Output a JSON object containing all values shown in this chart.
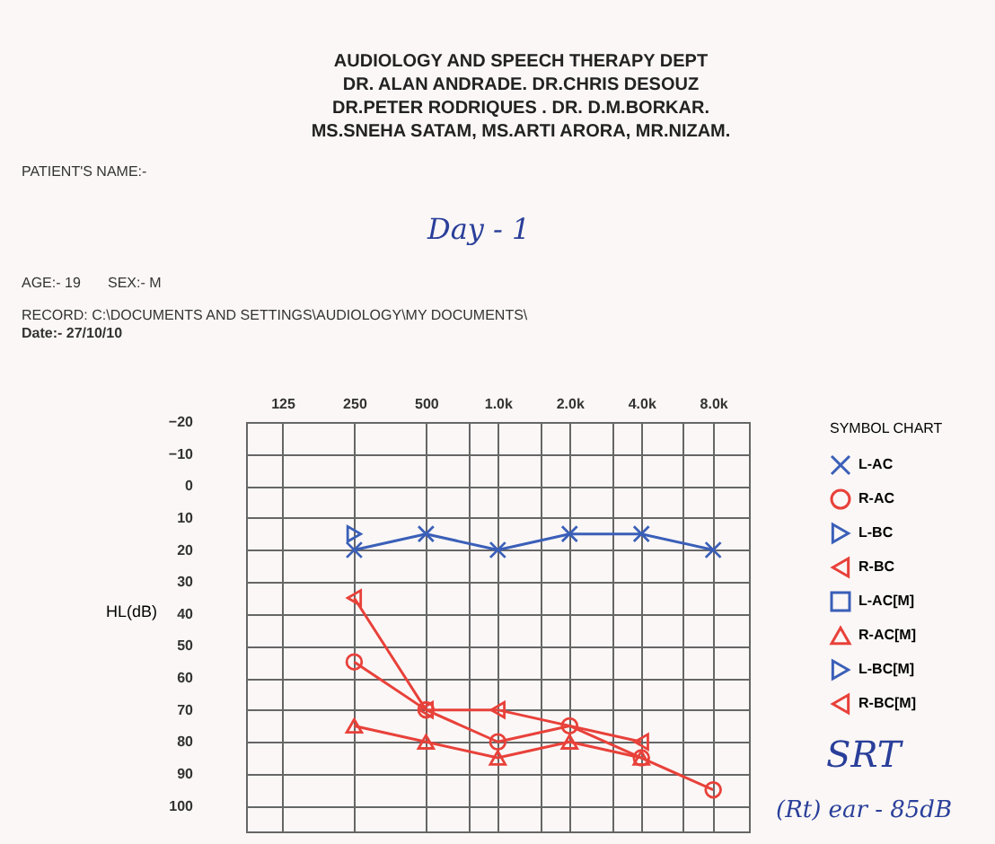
{
  "chart_data": {
    "type": "line",
    "subtitle": "AUDIOLOGY AND SPEECH THERAPY DEPT",
    "annotations": [
      "DR. ALAN ANDRADE.  DR.CHRIS DESOUZ",
      "DR.PETER  RODRIQUES .  DR. D.M.BORKAR.",
      "MS.SNEHA SATAM, MS.ARTI ARORA, MR.NIZAM.",
      "PATIENT'S NAME:-",
      "Day - 1",
      "AGE:- 19",
      "SEX:- M",
      "RECORD:  C:\\DOCUMENTS AND SETTINGS\\AUDIOLOGY\\MY DOCUMENTS\\",
      "Date:- 27/10/10",
      "SRT",
      "(Rt) ear - 85dB"
    ],
    "ylabel": "HL(dB)",
    "legend_title": "SYMBOL CHART",
    "legend": "right",
    "grid": true,
    "log": "x",
    "x": [
      250,
      500,
      1000,
      2000,
      4000,
      8000
    ],
    "xlim": [
      88,
      11300
    ],
    "xticks": [
      125,
      250,
      500,
      {
        "value": 750,
        "label": null
      },
      {
        "value": 1000,
        "label": "1.0k"
      },
      {
        "value": 1500,
        "label": null
      },
      {
        "value": 2000,
        "label": "2.0k"
      },
      {
        "value": 3000,
        "label": null
      },
      {
        "value": 4000,
        "label": "4.0k"
      },
      {
        "value": 6000,
        "label": null
      },
      {
        "value": 8000,
        "label": "8.0k"
      }
    ],
    "ylim": [
      108,
      -20
    ],
    "yticks": [
      -20,
      -10,
      0,
      10,
      20,
      30,
      40,
      50,
      60,
      70,
      80,
      90,
      100
    ],
    "series": [
      {
        "name": "L-AC",
        "color": "#3a5fb8",
        "type": "line",
        "marker": "x",
        "values": [
          20,
          15,
          20,
          15,
          15,
          20
        ]
      },
      {
        "name": "R-AC",
        "color": "#e8413a",
        "type": "line",
        "marker": "circle",
        "values": [
          55,
          70,
          80,
          75,
          85,
          95
        ]
      },
      {
        "name": "L-BC",
        "color": "#3a5fb8",
        "type": "scatter",
        "marker": "triangle-right",
        "values": [
          15,
          null,
          null,
          null,
          null,
          null
        ]
      },
      {
        "name": "R-BC",
        "color": "#e8413a",
        "type": "line",
        "marker": "triangle-left",
        "values": [
          35,
          70,
          70,
          null,
          80,
          null
        ]
      },
      {
        "name": "L-AC[M]",
        "color": "#3a5fb8",
        "type": "line",
        "marker": "square",
        "values": [
          null,
          null,
          null,
          null,
          null,
          null
        ]
      },
      {
        "name": "R-AC[M]",
        "color": "#e8413a",
        "type": "line",
        "marker": "triangle",
        "values": [
          75,
          80,
          85,
          80,
          85,
          null
        ]
      },
      {
        "name": "L-BC[M]",
        "color": "#3a5fb8",
        "type": "line",
        "marker": "triangle-right",
        "values": [
          null,
          null,
          null,
          null,
          null,
          null
        ]
      },
      {
        "name": "R-BC[M]",
        "color": "#e8413a",
        "type": "line",
        "marker": "triangle-left",
        "values": [
          null,
          null,
          null,
          null,
          null,
          null
        ]
      }
    ]
  }
}
